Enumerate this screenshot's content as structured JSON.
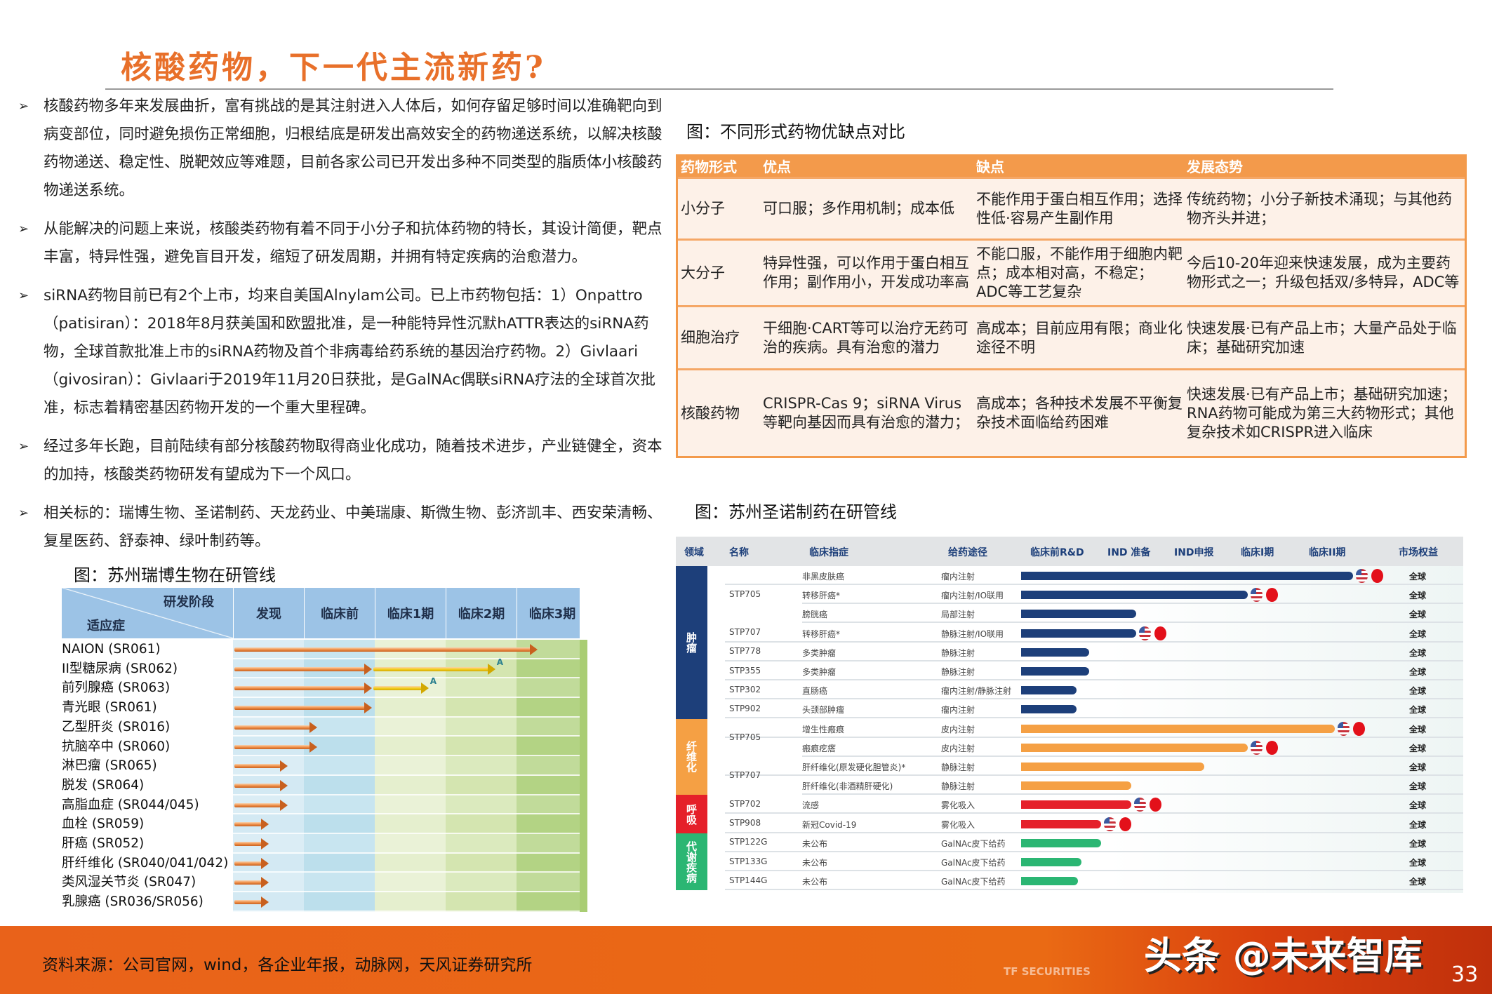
{
  "title": "核酸药物，下一代主流新药?",
  "bullets": [
    "核酸药物多年来发展曲折，富有挑战的是其注射进入人体后，如何存留足够时间以准确靶向到病变部位，同时避免损伤正常细胞，归根结底是研发出高效安全的药物递送系统，以解决核酸药物递送、稳定性、脱靶效应等难题，目前各家公司已开发出多种不同类型的脂质体小核酸药物递送系统。",
    "从能解决的问题上来说，核酸类药物有着不同于小分子和抗体药物的特长，其设计简便，靶点丰富，特异性强，避免盲目开发，缩短了研发周期，并拥有特定疾病的治愈潜力。",
    "siRNA药物目前已有2个上市，均来自美国Alnylam公司。已上市药物包括：1）Onpattro（patisiran）：2018年8月获美国和欧盟批准，是一种能特异性沉默hATTR表达的siRNA药物，全球首款批准上市的siRNA药物及首个非病毒给药系统的基因治疗药物。2）Givlaari（givosiran）：Givlaari于2019年11月20日获批，是GalNAc偶联siRNA疗法的全球首次批准，标志着精密基因药物开发的一个重大里程碑。",
    "经过多年长跑，目前陆续有部分核酸药物取得商业化成功，随着技术进步，产业链健全，资本的加持，核酸类药物研发有望成为下一个风口。",
    "相关标的：瑞博生物、圣诺制药、天龙药业、中美瑞康、斯微生物、彭济凯丰、西安荣清畅、复星医药、舒泰神、绿叶制药等。"
  ],
  "bullet_marker": "➢",
  "comparison": {
    "caption": "图：不同形式药物优缺点对比",
    "headers": [
      "药物形式",
      "优点",
      "缺点",
      "发展态势"
    ],
    "rows": [
      [
        "小分子",
        "可口服；多作用机制；成本低",
        "不能作用于蛋白相互作用；选择性低·容易产生副作用",
        "传统药物；小分子新技术涌现；与其他药物齐头并进；"
      ],
      [
        "大分子",
        "特异性强，可以作用于蛋白相互作用；副作用小，开发成功率高",
        "不能口服，不能作用于细胞内靶点；成本相对高，不稳定；ADC等工艺复杂",
        "今后10-20年迎来快速发展，成为主要药物形式之一；升级包括双/多特异，ADC等"
      ],
      [
        "细胞治疗",
        "干细胞·CART等可以治疗无药可治的疾病。具有治愈的潜力",
        "高成本；目前应用有限；商业化途径不明",
        "快速发展·已有产品上市；大量产品处于临床；基础研究加速"
      ],
      [
        "核酸药物",
        "CRISPR-Cas 9；siRNA Virus等靶向基因而具有治愈的潜力；",
        "高成本；各种技术发展不平衡复杂技术面临给药困难",
        "快速发展·已有产品上市；基础研究加速；RNA药物可能成为第三大药物形式；其他复杂技术如CRISPR进入临床"
      ]
    ],
    "colors": {
      "header": "#F39A4B",
      "row": "#FDF1E8"
    }
  },
  "ribo_pipeline": {
    "caption": "图：苏州瑞博生物在研管线",
    "corner_top": "研发阶段",
    "corner_bottom": "适应症",
    "stages": [
      "发现",
      "临床前",
      "临床1期",
      "临床2期",
      "临床3期"
    ],
    "rows": [
      {
        "label": "NAION (SR061)",
        "progress": 4.3
      },
      {
        "label": "II型糖尿病 (SR062)",
        "progress": 1.96,
        "partner_progress": 3.7,
        "mark": "A"
      },
      {
        "label": "前列腺癌 (SR063)",
        "progress": 1.96,
        "partner_progress": 2.76,
        "mark": "A"
      },
      {
        "label": "青光眼 (SR061)",
        "progress": 1.96
      },
      {
        "label": "乙型肝炎 (SR016)",
        "progress": 1.19
      },
      {
        "label": "抗脑卒中 (SR060)",
        "progress": 1.19
      },
      {
        "label": "淋巴瘤 (SR065)",
        "progress": 0.77
      },
      {
        "label": "脱发 (SR064)",
        "progress": 0.77
      },
      {
        "label": "高脂血症 (SR044/045)",
        "progress": 0.77
      },
      {
        "label": "血栓 (SR059)",
        "progress": 0.5
      },
      {
        "label": "肝癌 (SR052)",
        "progress": 0.5
      },
      {
        "label": "肝纤维化 (SR040/041/042)",
        "progress": 0.5
      },
      {
        "label": "类风湿关节炎 (SR047)",
        "progress": 0.5
      },
      {
        "label": "乳腺癌 (SR036/SR056)",
        "progress": 0.5
      }
    ]
  },
  "sirnaomics_pipeline": {
    "caption": "图：苏州圣诺制药在研管线",
    "headers": {
      "domain": "领域",
      "name": "名称",
      "indication": "临床指症",
      "route": "给药途径",
      "stages": [
        "临床前R&D",
        "IND 准备",
        "IND申报",
        "临床I期",
        "临床II期"
      ],
      "rights": "市场权益"
    },
    "groups": [
      {
        "domain": "肿瘤",
        "color": "#1D3F7A",
        "items": [
          {
            "code": "STP705",
            "rows": [
              {
                "indication": "非黑皮肤癌",
                "route": "瘤内注射",
                "progress": 4.98,
                "flags": true
              },
              {
                "indication": "转移肝癌*",
                "route": "瘤内注射/IO联用",
                "progress": 3.4,
                "flags": true
              },
              {
                "indication": "膀胱癌",
                "route": "局部注射",
                "progress": 1.73
              }
            ]
          },
          {
            "code": "STP707",
            "rows": [
              {
                "indication": "转移肝癌*",
                "route": "静脉注射/IO联用",
                "progress": 1.73,
                "flags": true
              }
            ]
          },
          {
            "code": "STP778",
            "rows": [
              {
                "indication": "多类肿瘤",
                "route": "静脉注射",
                "progress": 1.02
              }
            ]
          },
          {
            "code": "STP355",
            "rows": [
              {
                "indication": "多类肿瘤",
                "route": "静脉注射",
                "progress": 1.02
              }
            ]
          },
          {
            "code": "STP302",
            "rows": [
              {
                "indication": "直肠癌",
                "route": "瘤内注射/静脉注射",
                "progress": 0.83
              }
            ]
          },
          {
            "code": "STP902",
            "rows": [
              {
                "indication": "头颈部肿瘤",
                "route": "瘤内注射",
                "progress": 0.83
              }
            ]
          }
        ]
      },
      {
        "domain": "纤维化",
        "color": "#F5A044",
        "items": [
          {
            "code": "STP705",
            "rows": [
              {
                "indication": "增生性瘢痕",
                "route": "皮内注射",
                "progress": 4.7,
                "flags": true
              },
              {
                "indication": "瘢痕疙瘩",
                "route": "皮内注射",
                "progress": 3.4,
                "flags": true
              }
            ]
          },
          {
            "code": "STP707",
            "rows": [
              {
                "indication": "肝纤维化(原发硬化胆管炎)*",
                "route": "静脉注射",
                "progress": 2.75
              },
              {
                "indication": "肝纤维化(非酒精肝硬化)",
                "route": "静脉注射",
                "progress": 1.65
              }
            ]
          }
        ]
      },
      {
        "domain": "呼吸",
        "color": "#E5202A",
        "items": [
          {
            "code": "STP702",
            "rows": [
              {
                "indication": "流感",
                "route": "雾化吸入",
                "progress": 1.65,
                "flags": true
              }
            ]
          },
          {
            "code": "STP908",
            "rows": [
              {
                "indication": "新冠Covid-19",
                "route": "雾化吸入",
                "progress": 1.2,
                "flags": true
              }
            ]
          }
        ]
      },
      {
        "domain": "代谢疾病",
        "color": "#2BB673",
        "items": [
          {
            "code": "STP122G",
            "rows": [
              {
                "indication": "未公布",
                "route": "GalNAc皮下给药",
                "progress": 1.2
              }
            ]
          },
          {
            "code": "STP133G",
            "rows": [
              {
                "indication": "未公布",
                "route": "GalNAc皮下给药",
                "progress": 0.9
              }
            ]
          },
          {
            "code": "STP144G",
            "rows": [
              {
                "indication": "未公布",
                "route": "GalNAc皮下给药",
                "progress": 0.85
              }
            ]
          }
        ]
      }
    ],
    "rights_value": "全球",
    "flags_icons": [
      "us-flag-icon",
      "cn-flag-icon"
    ]
  },
  "footer": {
    "source": "资料来源：公司官网，wind，各企业年报，动脉网，天风证券研究所",
    "watermark": "头条 @未来智库",
    "logo": "TF SECURITIES",
    "page_number": "33"
  }
}
